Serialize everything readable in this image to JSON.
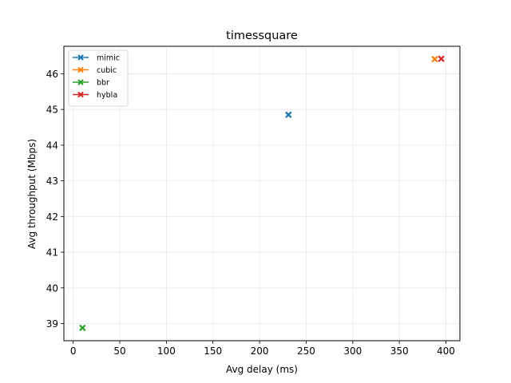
{
  "chart_data": {
    "type": "scatter",
    "title": "timessquare",
    "xlabel": "Avg delay (ms)",
    "ylabel": "Avg throughput (Mbps)",
    "xlim": [
      -10,
      415
    ],
    "ylim": [
      38.52,
      46.77
    ],
    "xticks": [
      0,
      50,
      100,
      150,
      200,
      250,
      300,
      350,
      400
    ],
    "yticks": [
      39,
      40,
      41,
      42,
      43,
      44,
      45,
      46
    ],
    "grid": true,
    "legend_position": "upper left",
    "marker": "X",
    "series": [
      {
        "name": "mimic",
        "color": "#1f77b4",
        "points": [
          [
            231,
            44.85
          ]
        ]
      },
      {
        "name": "cubic",
        "color": "#ff7f0e",
        "points": [
          [
            388,
            46.41
          ]
        ]
      },
      {
        "name": "bbr",
        "color": "#2ca02c",
        "points": [
          [
            10,
            38.88
          ]
        ]
      },
      {
        "name": "hybla",
        "color": "#d62728",
        "points": [
          [
            395,
            46.42
          ]
        ]
      }
    ]
  }
}
